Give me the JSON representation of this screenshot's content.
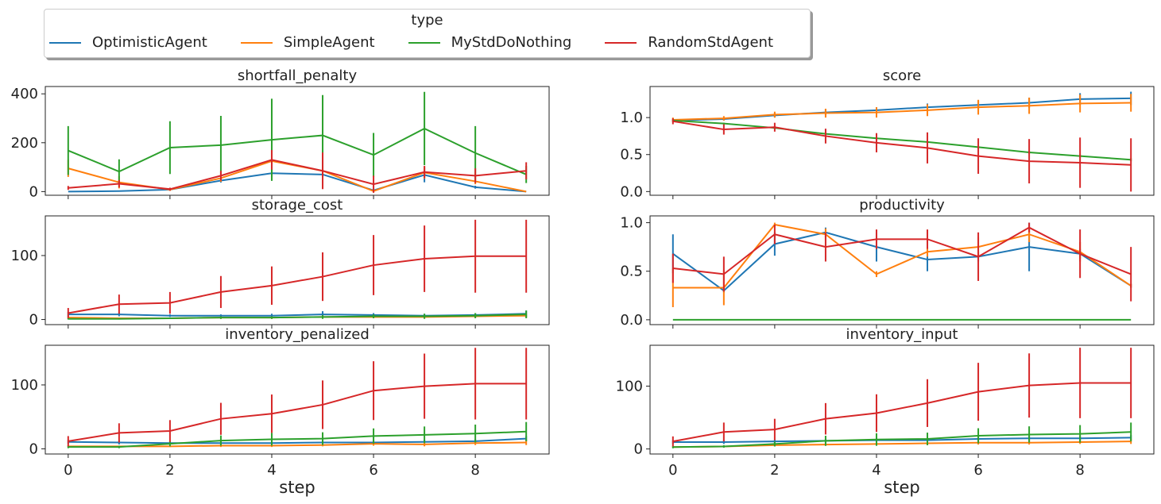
{
  "legend": {
    "title": "type",
    "items": [
      {
        "label": "OptimisticAgent",
        "color": "#1f77b4"
      },
      {
        "label": "SimpleAgent",
        "color": "#ff7f0e"
      },
      {
        "label": "MyStdDoNothing",
        "color": "#2ca02c"
      },
      {
        "label": "RandomStdAgent",
        "color": "#d62728"
      }
    ]
  },
  "chart_data": [
    {
      "type": "line",
      "title": "shortfall_penalty",
      "xlabel": "",
      "x": [
        0,
        1,
        2,
        3,
        4,
        5,
        6,
        7,
        8,
        9
      ],
      "ylim": [
        -15,
        430
      ],
      "yticks": [
        0,
        200,
        400
      ],
      "series": [
        {
          "name": "OptimisticAgent",
          "color": "#1f77b4",
          "values": [
            0,
            2,
            8,
            45,
            75,
            70,
            5,
            68,
            18,
            0
          ],
          "err": [
            0,
            0,
            5,
            8,
            15,
            10,
            5,
            30,
            6,
            0
          ]
        },
        {
          "name": "SimpleAgent",
          "color": "#ff7f0e",
          "values": [
            95,
            38,
            8,
            55,
            125,
            85,
            2,
            78,
            42,
            0
          ],
          "err": [
            35,
            25,
            5,
            15,
            40,
            20,
            3,
            25,
            12,
            0
          ]
        },
        {
          "name": "MyStdDoNothing",
          "color": "#2ca02c",
          "values": [
            168,
            82,
            180,
            190,
            212,
            230,
            150,
            258,
            158,
            70
          ],
          "err": [
            100,
            50,
            108,
            120,
            168,
            165,
            90,
            150,
            110,
            35
          ]
        },
        {
          "name": "RandomStdAgent",
          "color": "#d62728",
          "values": [
            15,
            32,
            10,
            65,
            130,
            85,
            30,
            80,
            65,
            85
          ],
          "err": [
            8,
            15,
            6,
            20,
            40,
            75,
            35,
            25,
            30,
            35
          ]
        }
      ]
    },
    {
      "type": "line",
      "title": "score",
      "xlabel": "",
      "x": [
        0,
        1,
        2,
        3,
        4,
        5,
        6,
        7,
        8,
        9
      ],
      "ylim": [
        -0.05,
        1.42
      ],
      "yticks": [
        0.0,
        0.5,
        1.0
      ],
      "series": [
        {
          "name": "OptimisticAgent",
          "color": "#1f77b4",
          "values": [
            0.96,
            0.98,
            1.03,
            1.07,
            1.1,
            1.14,
            1.17,
            1.2,
            1.25,
            1.26
          ],
          "err": [
            0.02,
            0.02,
            0.03,
            0.04,
            0.04,
            0.05,
            0.06,
            0.07,
            0.08,
            0.09
          ]
        },
        {
          "name": "SimpleAgent",
          "color": "#ff7f0e",
          "values": [
            0.97,
            0.99,
            1.04,
            1.06,
            1.07,
            1.1,
            1.14,
            1.16,
            1.19,
            1.2
          ],
          "err": [
            0.03,
            0.03,
            0.04,
            0.06,
            0.07,
            0.08,
            0.1,
            0.11,
            0.12,
            0.12
          ]
        },
        {
          "name": "MyStdDoNothing",
          "color": "#2ca02c",
          "values": [
            0.96,
            0.92,
            0.86,
            0.78,
            0.72,
            0.67,
            0.6,
            0.53,
            0.48,
            0.43
          ],
          "err": [
            0.01,
            0.01,
            0.02,
            0.02,
            0.02,
            0.02,
            0.02,
            0.02,
            0.02,
            0.02
          ]
        },
        {
          "name": "RandomStdAgent",
          "color": "#d62728",
          "values": [
            0.95,
            0.84,
            0.87,
            0.75,
            0.66,
            0.59,
            0.48,
            0.41,
            0.39,
            0.36
          ],
          "err": [
            0.04,
            0.07,
            0.06,
            0.1,
            0.13,
            0.21,
            0.24,
            0.3,
            0.34,
            0.36
          ]
        }
      ]
    },
    {
      "type": "line",
      "title": "storage_cost",
      "xlabel": "",
      "x": [
        0,
        1,
        2,
        3,
        4,
        5,
        6,
        7,
        8,
        9
      ],
      "ylim": [
        -8,
        162
      ],
      "yticks": [
        0,
        100
      ],
      "series": [
        {
          "name": "OptimisticAgent",
          "color": "#1f77b4",
          "values": [
            8,
            8,
            6,
            6,
            6,
            8,
            7,
            6,
            7,
            9
          ],
          "err": [
            4,
            3,
            2,
            2,
            3,
            5,
            3,
            3,
            3,
            5
          ]
        },
        {
          "name": "SimpleAgent",
          "color": "#ff7f0e",
          "values": [
            3,
            2,
            2,
            3,
            3,
            4,
            4,
            4,
            5,
            6
          ],
          "err": [
            2,
            1,
            1,
            2,
            2,
            2,
            2,
            2,
            2,
            3
          ]
        },
        {
          "name": "MyStdDoNothing",
          "color": "#2ca02c",
          "values": [
            1,
            1,
            2,
            3,
            3,
            4,
            5,
            5,
            6,
            8
          ],
          "err": [
            1,
            1,
            1,
            2,
            2,
            3,
            3,
            4,
            4,
            6
          ]
        },
        {
          "name": "RandomStdAgent",
          "color": "#d62728",
          "values": [
            10,
            24,
            26,
            43,
            53,
            67,
            85,
            95,
            99,
            99
          ],
          "err": [
            8,
            15,
            17,
            25,
            30,
            38,
            47,
            52,
            57,
            57
          ]
        }
      ]
    },
    {
      "type": "line",
      "title": "productivity",
      "xlabel": "",
      "x": [
        0,
        1,
        2,
        3,
        4,
        5,
        6,
        7,
        8,
        9
      ],
      "ylim": [
        -0.05,
        1.07
      ],
      "yticks": [
        0.0,
        0.5,
        1.0
      ],
      "series": [
        {
          "name": "OptimisticAgent",
          "color": "#1f77b4",
          "values": [
            0.68,
            0.3,
            0.78,
            0.9,
            0.75,
            0.62,
            0.65,
            0.75,
            0.68,
            0.35
          ],
          "err": [
            0.2,
            0.02,
            0.12,
            0.05,
            0.15,
            0.12,
            0.05,
            0.25,
            0.05,
            0.02
          ]
        },
        {
          "name": "SimpleAgent",
          "color": "#ff7f0e",
          "values": [
            0.33,
            0.33,
            0.98,
            0.88,
            0.47,
            0.7,
            0.75,
            0.88,
            0.7,
            0.35
          ],
          "err": [
            0.2,
            0.18,
            0.02,
            0.06,
            0.03,
            0.05,
            0.1,
            0.08,
            0.1,
            0.02
          ]
        },
        {
          "name": "MyStdDoNothing",
          "color": "#2ca02c",
          "values": [
            0,
            0,
            0,
            0,
            0,
            0,
            0,
            0,
            0,
            0
          ],
          "err": [
            0,
            0,
            0,
            0,
            0,
            0,
            0,
            0,
            0,
            0
          ]
        },
        {
          "name": "RandomStdAgent",
          "color": "#d62728",
          "values": [
            0.53,
            0.47,
            0.88,
            0.75,
            0.83,
            0.83,
            0.65,
            0.95,
            0.68,
            0.47
          ],
          "err": [
            0.15,
            0.18,
            0.1,
            0.15,
            0.1,
            0.1,
            0.25,
            0.05,
            0.25,
            0.28
          ]
        }
      ]
    },
    {
      "type": "line",
      "title": "inventory_penalized",
      "xlabel": "step",
      "x": [
        0,
        1,
        2,
        3,
        4,
        5,
        6,
        7,
        8,
        9
      ],
      "ylim": [
        -8,
        162
      ],
      "yticks": [
        0,
        100
      ],
      "series": [
        {
          "name": "OptimisticAgent",
          "color": "#1f77b4",
          "values": [
            11,
            10,
            9,
            9,
            9,
            10,
            10,
            11,
            12,
            16
          ],
          "err": [
            3,
            3,
            2,
            2,
            2,
            3,
            3,
            3,
            3,
            4
          ]
        },
        {
          "name": "SimpleAgent",
          "color": "#ff7f0e",
          "values": [
            4,
            4,
            4,
            5,
            5,
            6,
            8,
            7,
            9,
            10
          ],
          "err": [
            1,
            1,
            1,
            2,
            2,
            2,
            3,
            3,
            3,
            4
          ]
        },
        {
          "name": "MyStdDoNothing",
          "color": "#2ca02c",
          "values": [
            3,
            3,
            8,
            13,
            15,
            16,
            20,
            22,
            24,
            27
          ],
          "err": [
            2,
            2,
            4,
            8,
            10,
            10,
            12,
            13,
            14,
            15
          ]
        },
        {
          "name": "RandomStdAgent",
          "color": "#d62728",
          "values": [
            12,
            25,
            28,
            47,
            55,
            69,
            91,
            98,
            102,
            102
          ],
          "err": [
            8,
            15,
            17,
            25,
            30,
            38,
            46,
            51,
            56,
            56
          ]
        }
      ]
    },
    {
      "type": "line",
      "title": "inventory_input",
      "xlabel": "step",
      "x": [
        0,
        1,
        2,
        3,
        4,
        5,
        6,
        7,
        8,
        9
      ],
      "ylim": [
        -8,
        165
      ],
      "yticks": [
        0,
        100
      ],
      "series": [
        {
          "name": "OptimisticAgent",
          "color": "#1f77b4",
          "values": [
            11,
            11,
            12,
            13,
            14,
            14,
            16,
            17,
            17,
            18
          ],
          "err": [
            3,
            3,
            3,
            3,
            3,
            3,
            4,
            4,
            4,
            4
          ]
        },
        {
          "name": "SimpleAgent",
          "color": "#ff7f0e",
          "values": [
            3,
            4,
            6,
            7,
            8,
            9,
            10,
            10,
            11,
            12
          ],
          "err": [
            1,
            1,
            2,
            2,
            2,
            3,
            3,
            3,
            3,
            4
          ]
        },
        {
          "name": "MyStdDoNothing",
          "color": "#2ca02c",
          "values": [
            3,
            4,
            8,
            13,
            15,
            16,
            21,
            23,
            24,
            27
          ],
          "err": [
            2,
            2,
            4,
            8,
            10,
            10,
            12,
            13,
            14,
            15
          ]
        },
        {
          "name": "RandomStdAgent",
          "color": "#d62728",
          "values": [
            12,
            27,
            31,
            48,
            57,
            73,
            91,
            101,
            105,
            105
          ],
          "err": [
            8,
            15,
            17,
            25,
            30,
            38,
            46,
            51,
            56,
            56
          ]
        }
      ]
    }
  ]
}
